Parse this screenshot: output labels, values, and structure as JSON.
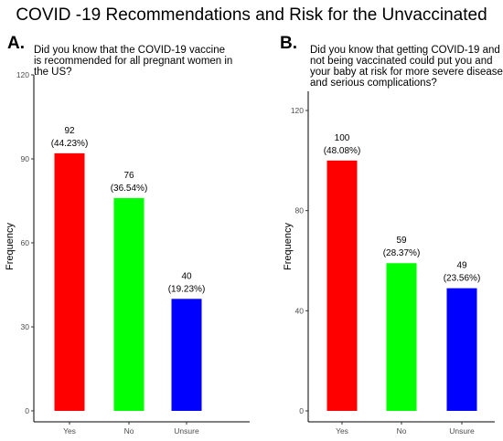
{
  "title": "COVID -19 Recommendations and Risk for the Unvaccinated",
  "chart_data": [
    {
      "type": "bar",
      "panel": "A.",
      "question": [
        "Did you know that the COVID-19 vaccine",
        "is recommended for all pregnant women in",
        "the US?"
      ],
      "categories": [
        "Yes",
        "No",
        "Unsure"
      ],
      "values": [
        92,
        76,
        40
      ],
      "percent_labels": [
        "(44.23%)",
        "(36.54%)",
        "(19.23%)"
      ],
      "colors": [
        "#ff0000",
        "#00ff00",
        "#0000ff"
      ],
      "xlabel": "",
      "ylabel": "Frequency",
      "ylim": [
        0,
        120
      ],
      "yticks": [
        0,
        30,
        60,
        90,
        120
      ],
      "grid": false
    },
    {
      "type": "bar",
      "panel": "B.",
      "question": [
        "Did you know that getting COVID-19 and",
        "not being vaccinated could put you and",
        "your baby at risk for more severe diseases",
        "and serious complications?"
      ],
      "categories": [
        "Yes",
        "No",
        "Unsure"
      ],
      "values": [
        100,
        59,
        49
      ],
      "percent_labels": [
        "(48.08%)",
        "(28.37%)",
        "(23.56%)"
      ],
      "colors": [
        "#ff0000",
        "#00ff00",
        "#0000ff"
      ],
      "xlabel": "",
      "ylabel": "Frequency",
      "ylim": [
        0,
        120
      ],
      "yticks": [
        0,
        40,
        80,
        120
      ],
      "grid": false
    }
  ]
}
